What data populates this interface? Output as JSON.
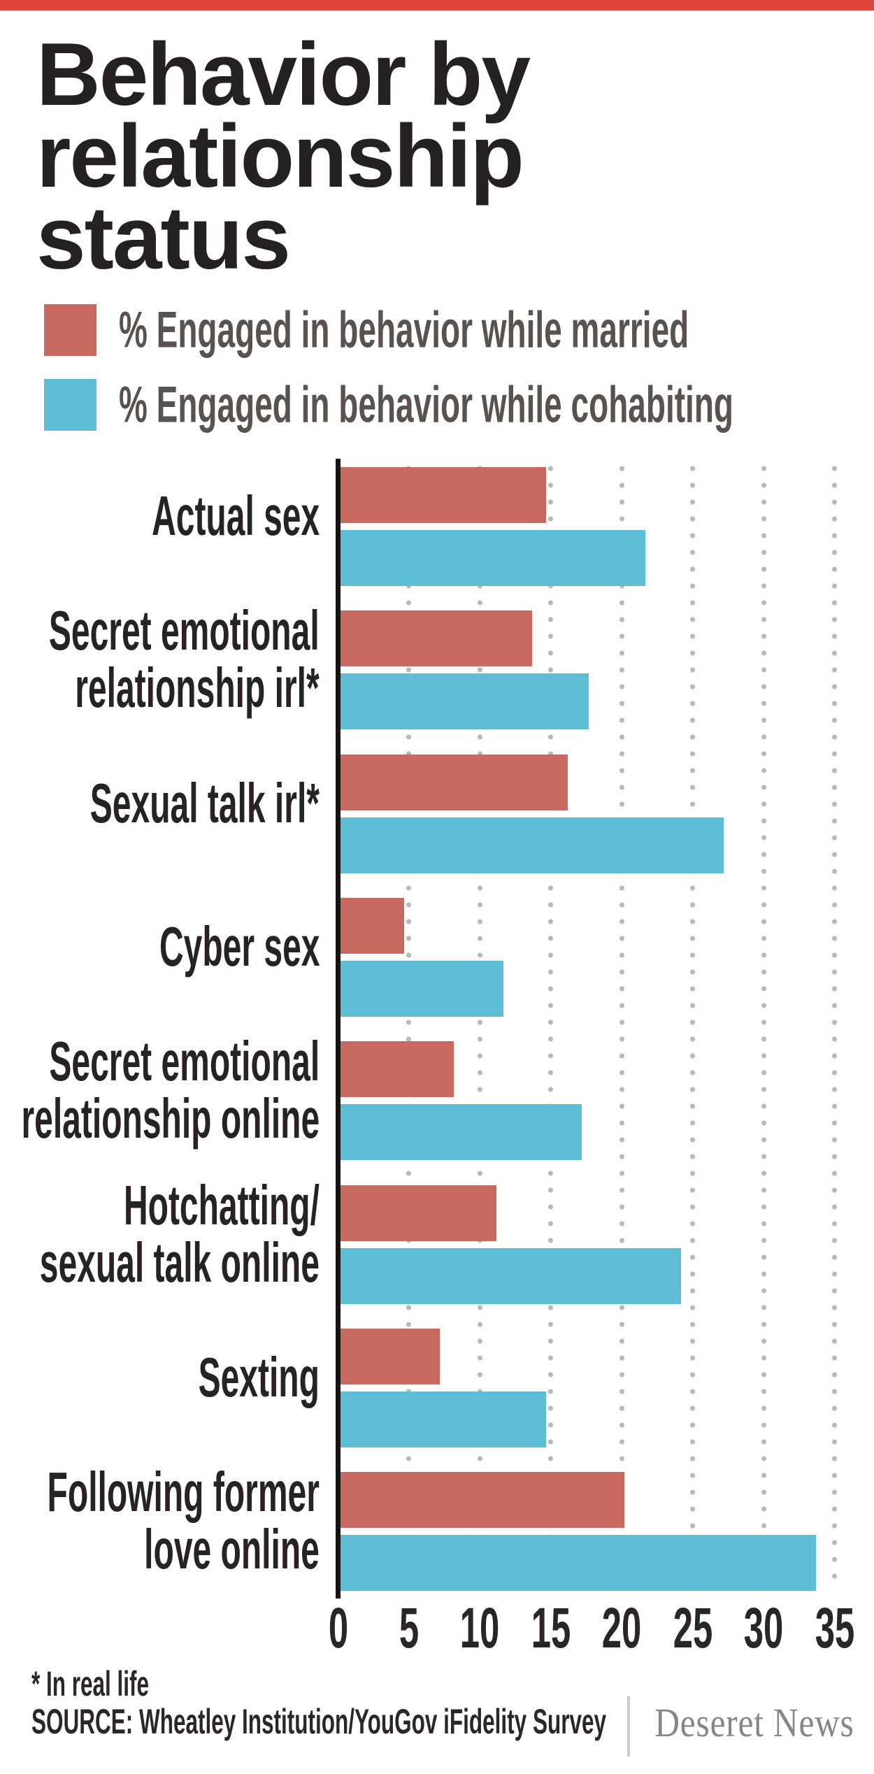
{
  "top_bar": {
    "color": "#DD4338"
  },
  "title": {
    "lines": [
      "Behavior by",
      "relationship",
      "status"
    ]
  },
  "legend": [
    {
      "label": "% Engaged in behavior while married",
      "color": "#C8695F"
    },
    {
      "label": "% Engaged in behavior while cohabiting",
      "color": "#5DBDD5"
    }
  ],
  "chart_data": {
    "type": "bar",
    "orientation": "horizontal",
    "title": "Behavior by relationship status",
    "categories": [
      "Actual sex",
      "Secret emotional relationship irl*",
      "Sexual talk irl*",
      "Cyber sex",
      "Secret emotional relationship online",
      "Hotchatting/sexual talk online",
      "Sexting",
      "Following former love online"
    ],
    "category_label_lines": [
      [
        "Actual sex"
      ],
      [
        "Secret emotional",
        "relationship irl*"
      ],
      [
        "Sexual talk irl*"
      ],
      [
        "Cyber sex"
      ],
      [
        "Secret emotional",
        "relationship online"
      ],
      [
        "Hotchatting/",
        "sexual talk online"
      ],
      [
        "Sexting"
      ],
      [
        "Following former",
        "love online"
      ]
    ],
    "series": [
      {
        "name": "% Engaged in behavior while married",
        "color": "#C8695F",
        "values": [
          14.5,
          13.5,
          16,
          4.5,
          8,
          11,
          7,
          20
        ]
      },
      {
        "name": "% Engaged in behavior while cohabiting",
        "color": "#5DBDD5",
        "values": [
          21.5,
          17.5,
          27,
          11.5,
          17,
          24,
          14.5,
          33.5
        ]
      }
    ],
    "xlim": [
      0,
      35
    ],
    "xticks": [
      0,
      5,
      10,
      15,
      20,
      25,
      30,
      35
    ],
    "grid": "dotted-vertical",
    "gridline_color": "#b9b9b9",
    "legend_position": "top-left"
  },
  "footer": {
    "footnote": "* In real life",
    "source": "SOURCE: Wheatley Institution/YouGov iFidelity Survey",
    "brand": "Deseret News"
  }
}
